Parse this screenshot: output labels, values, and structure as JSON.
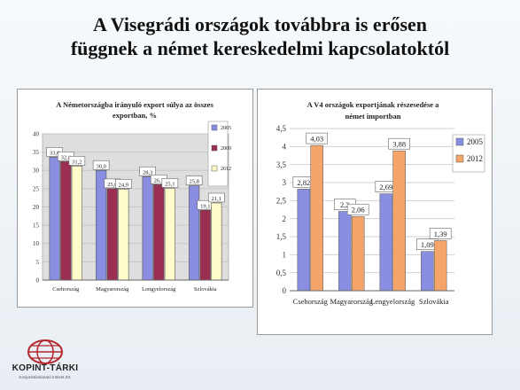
{
  "slide": {
    "title_line1": "A Visegrádi országok továbbra is erősen",
    "title_line2": "függnek a német kereskedelmi kapcsolatoktól"
  },
  "logo": {
    "name": "KOPINT-TÁRKI",
    "subtitle": "Konjunktúrakutató Intézet Zrt."
  },
  "chart_data": [
    {
      "type": "bar",
      "title": "A Németországba irányuló export súlya az összes exportban, %",
      "categories": [
        "Csehország",
        "Magyarország",
        "Lengyelország",
        "Szlovákia"
      ],
      "series": [
        {
          "name": "2005",
          "values": [
            33.6,
            30.0,
            28.3,
            25.8
          ]
        },
        {
          "name": "2009",
          "values": [
            32.4,
            25.0,
            26.1,
            19.1
          ]
        },
        {
          "name": "2012",
          "values": [
            31.2,
            24.9,
            25.1,
            21.1
          ]
        }
      ],
      "data_labels": [
        [
          "33,6",
          "32,4",
          "31,2"
        ],
        [
          "30,0",
          "25,0",
          "24,9"
        ],
        [
          "28,3",
          "26,1",
          "25,1"
        ],
        [
          "25,8",
          "19,1",
          "21,1"
        ]
      ],
      "ylim": [
        0,
        40
      ],
      "yticks": [
        "0",
        "5",
        "10",
        "15",
        "20",
        "25",
        "30",
        "35",
        "40"
      ],
      "grid": true,
      "legend": "right",
      "colors": [
        "#8a8ee0",
        "#9a2f52",
        "#fffccb"
      ]
    },
    {
      "type": "bar",
      "title": "A V4 országok exportjának részesedése a német importban",
      "categories": [
        "Csehország",
        "Magyarország",
        "Lengyelország",
        "Szlovákia"
      ],
      "series": [
        {
          "name": "2005",
          "values": [
            2.82,
            2.2,
            2.69,
            1.09
          ]
        },
        {
          "name": "2012",
          "values": [
            4.03,
            2.06,
            3.88,
            1.39
          ]
        }
      ],
      "data_labels": [
        [
          "2,82",
          "4,03"
        ],
        [
          "2,2",
          "2,06"
        ],
        [
          "2,69",
          "3,88"
        ],
        [
          "1,09",
          "1,39"
        ]
      ],
      "ylim": [
        0,
        4.5
      ],
      "yticks": [
        "0",
        "0,5",
        "1",
        "1,5",
        "2",
        "2,5",
        "3",
        "3,5",
        "4",
        "4,5"
      ],
      "grid": true,
      "legend": "right",
      "colors": [
        "#8a8ee0",
        "#f5a46a"
      ]
    }
  ]
}
